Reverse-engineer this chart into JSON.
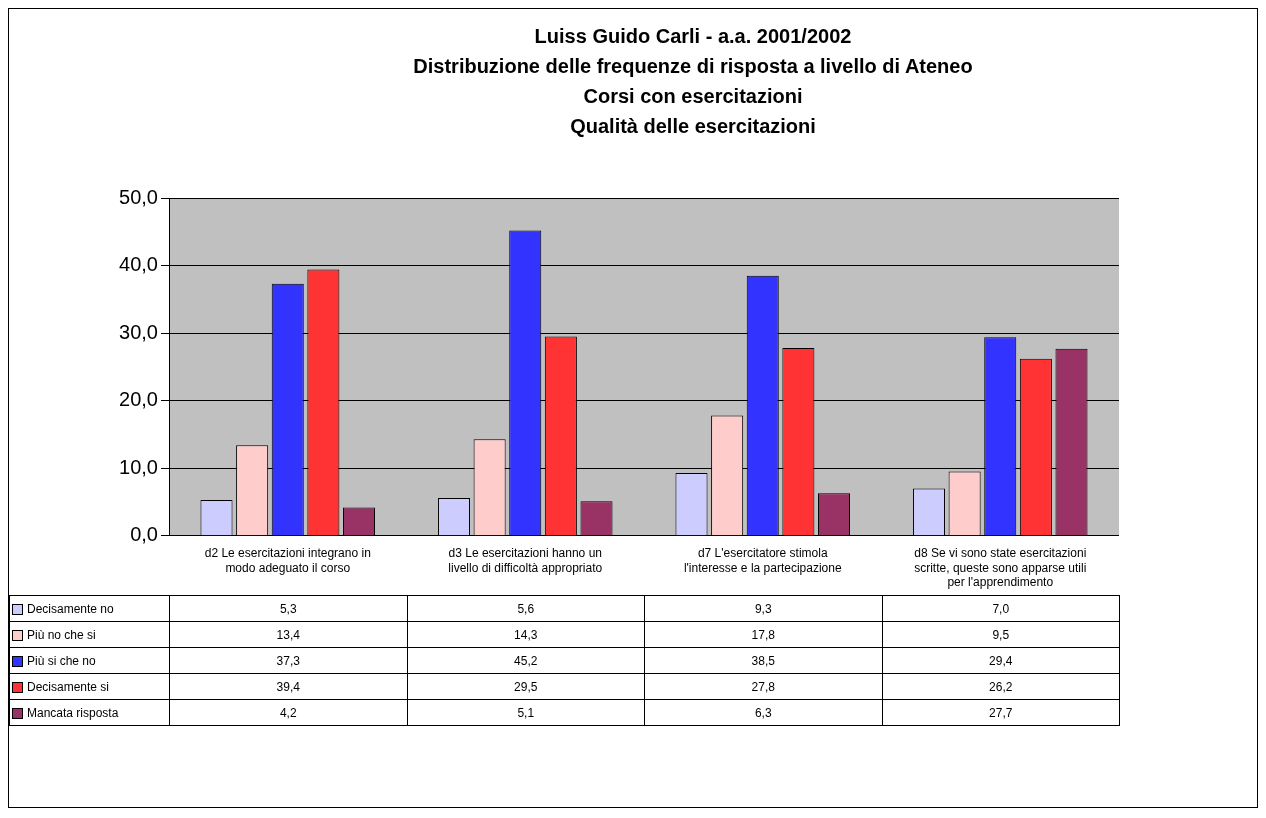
{
  "chart_data": {
    "type": "bar",
    "title": "Luiss Guido Carli - a.a. 2001/2002\nDistribuzione delle frequenze di risposta a livello di Ateneo\nCorsi con esercitazioni\nQualità delle esercitazioni",
    "categories": [
      "d2 Le esercitazioni integrano in modo adeguato il corso",
      "d3 Le esercitazioni hanno un livello di difficoltà appropriato",
      "d7 L'esercitatore stimola l'interesse e la partecipazione",
      "d8 Se vi sono state esercitazioni scritte, queste sono apparse utili per l'apprendimento"
    ],
    "series": [
      {
        "name": "Decisamente no",
        "color": "#ccccff",
        "values": [
          5.3,
          5.6,
          9.3,
          7.0
        ],
        "value_labels": [
          "5,3",
          "5,6",
          "9,3",
          "7,0"
        ]
      },
      {
        "name": "Più no che si",
        "color": "#ffcccc",
        "values": [
          13.4,
          14.3,
          17.8,
          9.5
        ],
        "value_labels": [
          "13,4",
          "14,3",
          "17,8",
          "9,5"
        ]
      },
      {
        "name": "Più si che no",
        "color": "#3333ff",
        "values": [
          37.3,
          45.2,
          38.5,
          29.4
        ],
        "value_labels": [
          "37,3",
          "45,2",
          "38,5",
          "29,4"
        ]
      },
      {
        "name": "Decisamente si",
        "color": "#ff3333",
        "values": [
          39.4,
          29.5,
          27.8,
          26.2
        ],
        "value_labels": [
          "39,4",
          "29,5",
          "27,8",
          "26,2"
        ]
      },
      {
        "name": "Mancata risposta",
        "color": "#993366",
        "values": [
          4.2,
          5.1,
          6.3,
          27.7
        ],
        "value_labels": [
          "4,2",
          "5,1",
          "6,3",
          "27,7"
        ]
      }
    ],
    "ylim": [
      0,
      50
    ],
    "yticks": [
      {
        "value": 0,
        "label": "0,0"
      },
      {
        "value": 10,
        "label": "10,0"
      },
      {
        "value": 20,
        "label": "20,0"
      },
      {
        "value": 30,
        "label": "30,0"
      },
      {
        "value": 40,
        "label": "40,0"
      },
      {
        "value": 50,
        "label": "50,0"
      }
    ],
    "grid": "y",
    "legend": "bottom"
  }
}
